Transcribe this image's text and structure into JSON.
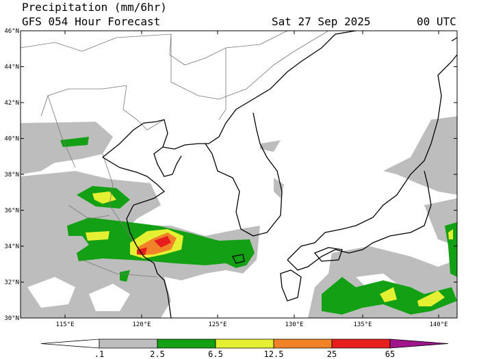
{
  "header": {
    "title": "Precipitation (mm/6hr)",
    "subtitle": "GFS 054 Hour Forecast",
    "date": "Sat 27 Sep 2025",
    "time": "00 UTC"
  },
  "map": {
    "lat_labels": [
      "46°N",
      "44°N",
      "42°N",
      "40°N",
      "38°N",
      "36°N",
      "34°N",
      "32°N",
      "30°N"
    ],
    "lon_labels": [
      "115°E",
      "120°E",
      "125°E",
      "130°E",
      "135°E",
      "140°E"
    ]
  },
  "colorbar": {
    "colors": [
      "#ffffff",
      "#bdbdbd",
      "#14a014",
      "#e6f032",
      "#f08228",
      "#e61e1e",
      "#a0148c"
    ],
    "labels": [
      ".1",
      "2.5",
      "6.5",
      "12.5",
      "25",
      "65"
    ]
  }
}
